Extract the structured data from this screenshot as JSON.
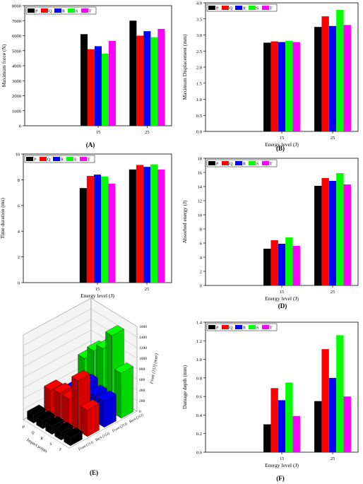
{
  "colors": {
    "P": "#000000",
    "Q": "#ff0000",
    "R": "#0000ff",
    "S": "#00ff00",
    "T": "#ff00ff"
  },
  "chart_data": [
    {
      "id": "A",
      "type": "bar",
      "caption": "(A)",
      "xlabel": "",
      "ylabel": "Maximum force (N)",
      "categories": [
        "",
        "15",
        "25"
      ],
      "ylim": [
        0,
        8000
      ],
      "yticks": [
        0,
        1000,
        2000,
        3000,
        4000,
        5000,
        6000,
        7000,
        8000
      ],
      "series": [
        {
          "name": "P",
          "values": [
            null,
            6100,
            7000
          ]
        },
        {
          "name": "Q",
          "values": [
            null,
            5100,
            6000
          ]
        },
        {
          "name": "R",
          "values": [
            null,
            5300,
            6300
          ]
        },
        {
          "name": "S",
          "values": [
            null,
            4800,
            5900
          ]
        },
        {
          "name": "T",
          "values": [
            null,
            5650,
            6450
          ]
        }
      ],
      "legend": "top-left",
      "grid": false
    },
    {
      "id": "B",
      "type": "bar",
      "caption": "(B)",
      "xlabel": "Energy level (J)",
      "ylabel": "Maximum Displacement (mm)",
      "categories": [
        "",
        "15",
        "25"
      ],
      "ylim": [
        0,
        4.0
      ],
      "yticks": [
        0.0,
        0.5,
        1.0,
        1.5,
        2.0,
        2.5,
        3.0,
        3.5,
        4.0
      ],
      "series": [
        {
          "name": "P",
          "values": [
            null,
            2.76,
            3.25
          ]
        },
        {
          "name": "Q",
          "values": [
            null,
            2.8,
            3.58
          ]
        },
        {
          "name": "R",
          "values": [
            null,
            2.78,
            3.28
          ]
        },
        {
          "name": "S",
          "values": [
            null,
            2.82,
            3.78
          ]
        },
        {
          "name": "T",
          "values": [
            null,
            2.78,
            3.31
          ]
        }
      ],
      "legend": "top-left",
      "grid": false
    },
    {
      "id": "C",
      "type": "bar",
      "caption": "(C)",
      "xlabel": "Energy level (J)",
      "ylabel": "Time duration (ms)",
      "categories": [
        "",
        "15",
        "25"
      ],
      "ylim": [
        0,
        10
      ],
      "yticks": [
        0,
        2,
        4,
        6,
        8,
        10
      ],
      "series": [
        {
          "name": "P",
          "values": [
            null,
            7.35,
            8.8
          ]
        },
        {
          "name": "Q",
          "values": [
            null,
            8.3,
            9.15
          ]
        },
        {
          "name": "R",
          "values": [
            null,
            8.4,
            9.0
          ]
        },
        {
          "name": "S",
          "values": [
            null,
            8.25,
            9.2
          ]
        },
        {
          "name": "T",
          "values": [
            null,
            7.7,
            8.8
          ]
        }
      ],
      "legend": "top-left",
      "grid": false
    },
    {
      "id": "D",
      "type": "bar",
      "caption": "(D)",
      "xlabel": "Energy level (J)",
      "ylabel": "Absorbed energy (J)",
      "categories": [
        "",
        "15",
        "25"
      ],
      "ylim": [
        0,
        18
      ],
      "yticks": [
        0,
        2,
        4,
        6,
        8,
        10,
        12,
        14,
        16,
        18
      ],
      "series": [
        {
          "name": "P",
          "values": [
            null,
            5.2,
            14.1
          ]
        },
        {
          "name": "Q",
          "values": [
            null,
            6.4,
            15.2
          ]
        },
        {
          "name": "R",
          "values": [
            null,
            5.9,
            14.8
          ]
        },
        {
          "name": "S",
          "values": [
            null,
            6.8,
            15.9
          ]
        },
        {
          "name": "T",
          "values": [
            null,
            5.6,
            14.3
          ]
        }
      ],
      "legend": "top-left",
      "grid": false
    },
    {
      "id": "E",
      "type": "bar",
      "subtype": "3d-bar",
      "caption": "(E)",
      "xlabel": "Impact points",
      "zlabel": "Front (15J) (mm²)",
      "x_ticks": [
        "T",
        "S",
        "R",
        "Q",
        "P"
      ],
      "y_ticks": [
        "Front (15J)",
        "Back (15J)",
        "Front (25J)",
        "Back (25J)"
      ],
      "z_ticks": [
        0,
        200,
        400,
        600,
        800,
        1000,
        1200,
        1400,
        1600
      ],
      "rows": [
        {
          "name": "Front (15J)",
          "color": "#000000",
          "values": [
            150,
            150,
            150,
            150,
            150
          ]
        },
        {
          "name": "Back (15J)",
          "color": "#ff0000",
          "values": [
            500,
            950,
            500,
            500,
            450
          ]
        },
        {
          "name": "Front (25J)",
          "color": "#0000ff",
          "values": [
            500,
            500,
            600,
            300,
            250
          ]
        },
        {
          "name": "Back (25J)",
          "color": "#00ff00",
          "values": [
            850,
            1450,
            1100,
            950,
            700
          ]
        }
      ],
      "grid": true
    },
    {
      "id": "F",
      "type": "bar",
      "caption": "(F)",
      "xlabel": "Energy level (J)",
      "ylabel": "Damage depth (mm)",
      "categories": [
        "",
        "15",
        "25"
      ],
      "ylim": [
        0,
        1.4
      ],
      "yticks": [
        0.0,
        0.2,
        0.4,
        0.6,
        0.8,
        1.0,
        1.2,
        1.4
      ],
      "series": [
        {
          "name": "P",
          "values": [
            null,
            0.3,
            0.55
          ]
        },
        {
          "name": "Q",
          "values": [
            null,
            0.69,
            1.11
          ]
        },
        {
          "name": "R",
          "values": [
            null,
            0.56,
            0.8
          ]
        },
        {
          "name": "S",
          "values": [
            null,
            0.75,
            1.26
          ]
        },
        {
          "name": "T",
          "values": [
            null,
            0.39,
            0.6
          ]
        }
      ],
      "legend": "top-left",
      "grid": false
    }
  ]
}
